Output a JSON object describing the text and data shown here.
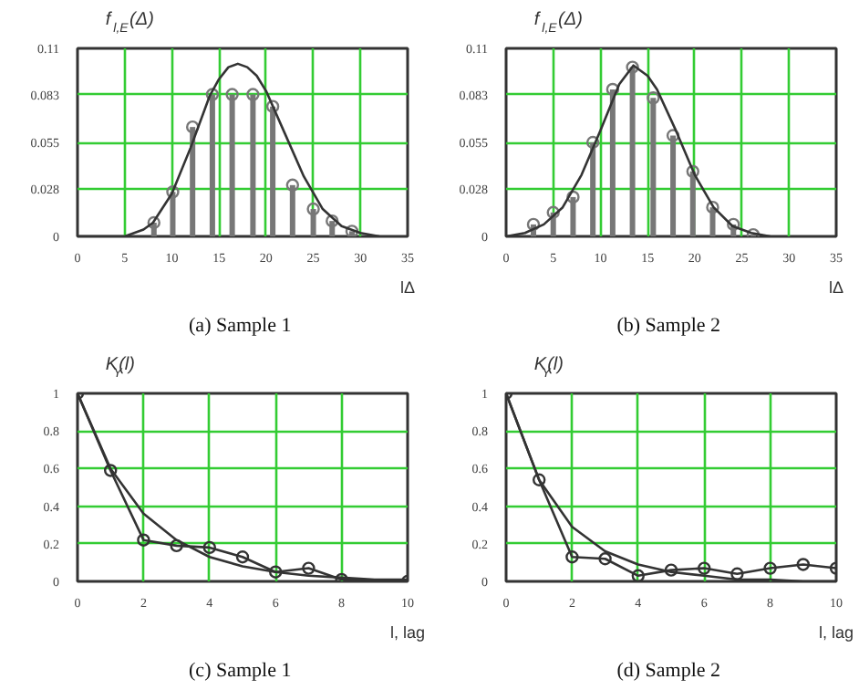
{
  "chart_data": [
    {
      "type": "lollipop",
      "title": "(a)  Sample 1",
      "xlabel": "lΔ",
      "ylabel": "f$_{l,E}$(Δ)",
      "xlim": [
        0,
        35
      ],
      "ylim": [
        0,
        0.11
      ],
      "xticks": [
        0,
        5,
        10,
        15,
        20,
        25,
        30,
        35
      ],
      "yticks": [
        0,
        0.028,
        0.055,
        0.083,
        0.11
      ],
      "grid": true,
      "series": [
        {
          "marker": "circle",
          "color": "#777777",
          "x": [
            8.1,
            10.1,
            12.2,
            14.3,
            16.4,
            18.6,
            20.7,
            22.8,
            25.0,
            27.0,
            29.1
          ],
          "values": [
            0.008,
            0.026,
            0.064,
            0.083,
            0.083,
            0.083,
            0.076,
            0.03,
            0.016,
            0.009,
            0.003
          ]
        },
        {
          "type": "line",
          "marker": "none",
          "color": "#333333",
          "x": [
            0,
            3,
            5,
            7,
            8,
            10,
            12,
            14,
            15,
            16,
            17,
            18,
            19,
            20,
            22,
            24,
            26,
            28,
            30,
            32
          ],
          "values": [
            0,
            0,
            0,
            0.004,
            0.008,
            0.025,
            0.052,
            0.082,
            0.092,
            0.099,
            0.101,
            0.099,
            0.094,
            0.085,
            0.06,
            0.035,
            0.016,
            0.006,
            0.002,
            0
          ]
        }
      ]
    },
    {
      "type": "lollipop",
      "title": "(b)  Sample 2",
      "xlabel": "lΔ",
      "ylabel": "f$_{l,E}$(Δ)",
      "xlim": [
        0,
        35
      ],
      "ylim": [
        0,
        0.11
      ],
      "xticks": [
        0,
        5,
        10,
        15,
        20,
        25,
        30,
        35
      ],
      "yticks": [
        0,
        0.028,
        0.055,
        0.083,
        0.11
      ],
      "grid": true,
      "series": [
        {
          "marker": "circle",
          "color": "#777777",
          "x": [
            2.9,
            5.0,
            7.1,
            9.2,
            11.3,
            13.4,
            15.6,
            17.7,
            19.8,
            21.9,
            24.1,
            26.2
          ],
          "values": [
            0.007,
            0.014,
            0.023,
            0.055,
            0.086,
            0.099,
            0.081,
            0.059,
            0.038,
            0.017,
            0.007,
            0.001
          ]
        },
        {
          "type": "line",
          "marker": "none",
          "color": "#333333",
          "x": [
            0,
            2,
            4,
            6,
            8,
            10,
            12,
            13.5,
            15,
            16,
            18,
            20,
            22,
            24,
            26,
            28
          ],
          "values": [
            0,
            0.002,
            0.007,
            0.017,
            0.036,
            0.062,
            0.089,
            0.1,
            0.094,
            0.086,
            0.062,
            0.036,
            0.017,
            0.006,
            0.002,
            0
          ]
        }
      ]
    },
    {
      "type": "line",
      "title": "(c)  Sample 1",
      "xlabel": "l, lag",
      "ylabel": "K$_{Y}$(l)",
      "xlim": [
        0,
        10
      ],
      "ylim": [
        0,
        1
      ],
      "xticks": [
        0,
        2,
        4,
        6,
        8,
        10
      ],
      "yticks": [
        0,
        0.2,
        0.4,
        0.6,
        0.8,
        1
      ],
      "grid": true,
      "series": [
        {
          "marker": "circle",
          "color": "#333333",
          "x": [
            0,
            1,
            2,
            3,
            4,
            5,
            6,
            7,
            8,
            10
          ],
          "values": [
            1,
            0.59,
            0.22,
            0.19,
            0.18,
            0.13,
            0.05,
            0.07,
            0.01,
            0
          ]
        },
        {
          "marker": "none",
          "color": "#333333",
          "x": [
            0,
            1,
            2,
            3,
            4,
            5,
            6,
            7,
            8,
            9,
            10
          ],
          "values": [
            1,
            0.6,
            0.36,
            0.22,
            0.13,
            0.08,
            0.05,
            0.03,
            0.02,
            0.01,
            0.01
          ]
        }
      ]
    },
    {
      "type": "line",
      "title": "(d)  Sample 2",
      "xlabel": "l, lag",
      "ylabel": "K$_{Y}$(l)",
      "xlim": [
        0,
        10
      ],
      "ylim": [
        0,
        1
      ],
      "xticks": [
        0,
        2,
        4,
        6,
        8,
        10
      ],
      "yticks": [
        0,
        0.2,
        0.4,
        0.6,
        0.8,
        1
      ],
      "grid": true,
      "series": [
        {
          "marker": "circle",
          "color": "#333333",
          "x": [
            0,
            1,
            2,
            3,
            4,
            5,
            6,
            7,
            8,
            9,
            10
          ],
          "values": [
            1,
            0.54,
            0.13,
            0.12,
            0.03,
            0.06,
            0.07,
            0.04,
            0.07,
            0.09,
            0.07
          ]
        },
        {
          "marker": "none",
          "color": "#333333",
          "x": [
            0,
            1,
            2,
            3,
            4,
            5,
            6,
            7,
            8,
            9,
            10
          ],
          "values": [
            1,
            0.54,
            0.29,
            0.16,
            0.09,
            0.05,
            0.03,
            0.01,
            0.01,
            0,
            0
          ]
        }
      ]
    }
  ]
}
